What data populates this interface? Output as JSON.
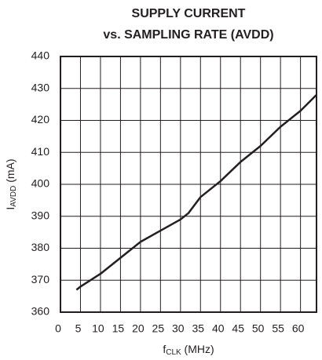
{
  "chart_data": {
    "type": "line",
    "title": [
      "SUPPLY CURRENT",
      "vs. SAMPLING RATE  (AVDD)"
    ],
    "ylabel_parts": [
      "I",
      "AVDD",
      " (mA)"
    ],
    "xlabel_parts": [
      "f",
      "CLK",
      " (MHz)"
    ],
    "x": [
      4,
      5,
      10,
      15,
      20,
      25,
      30,
      32,
      35,
      40,
      45,
      50,
      55,
      60,
      64
    ],
    "series": [
      {
        "color": "#231f20",
        "values": [
          367,
          368,
          372,
          377,
          382,
          385.5,
          389,
          391,
          396,
          401,
          407,
          412,
          418,
          423,
          428
        ]
      }
    ],
    "xlim": [
      0,
      64
    ],
    "xticks": [
      0,
      5,
      10,
      15,
      20,
      25,
      30,
      35,
      40,
      45,
      50,
      55,
      60
    ],
    "ylim": [
      360,
      440
    ],
    "yticks": [
      360,
      370,
      380,
      390,
      400,
      410,
      420,
      430,
      440
    ],
    "grid": true
  }
}
